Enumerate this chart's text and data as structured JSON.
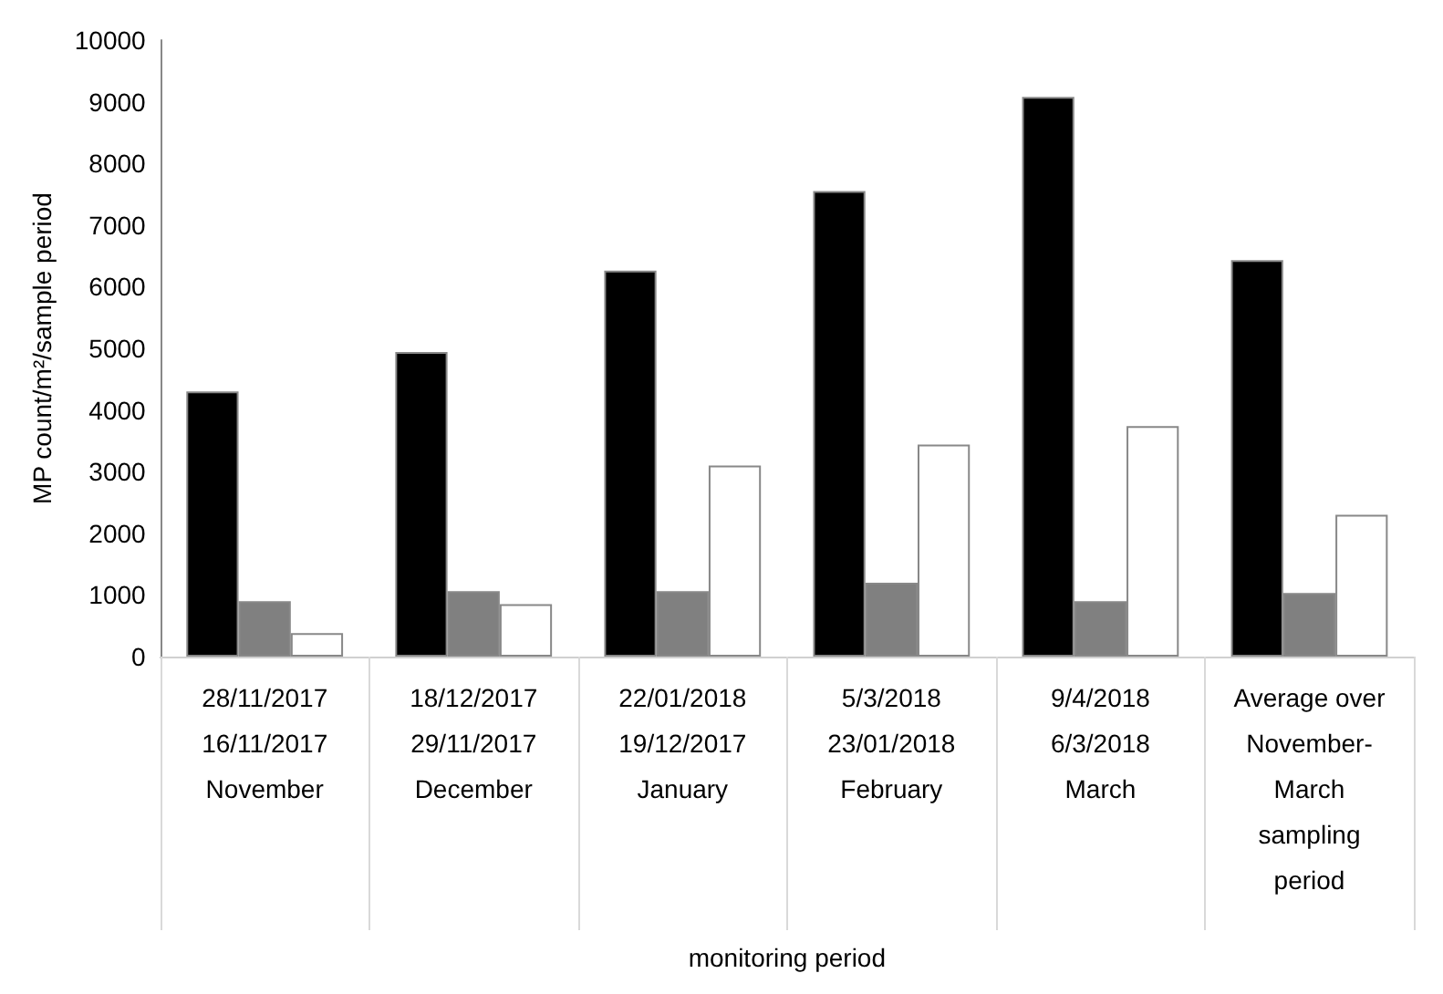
{
  "chart_data": {
    "type": "bar",
    "xlabel": "monitoring period",
    "ylabel": "MP count/m²/sample period",
    "categories": [
      "28/11/2017\n16/11/2017\nNovember",
      "18/12/2017\n29/11/2017\nDecember",
      "22/01/2018\n19/12/2017\nJanuary",
      "5/3/2018\n23/01/2018\nFebruary",
      "9/4/2018\n6/3/2018\nMarch",
      "Average over\nNovember-\nMarch\nsampling\nperiod"
    ],
    "series": [
      {
        "color": "#000000",
        "values": [
          4300,
          4940,
          6260,
          7550,
          9080,
          6430
        ]
      },
      {
        "color": "#808080",
        "values": [
          900,
          1060,
          1060,
          1200,
          900,
          1030
        ]
      },
      {
        "color": "#ffffff",
        "values": [
          380,
          850,
          3100,
          3440,
          3740,
          2300
        ]
      }
    ],
    "ylim": [
      0,
      10000
    ],
    "yticks": [
      0,
      1000,
      2000,
      3000,
      4000,
      5000,
      6000,
      7000,
      8000,
      9000,
      10000
    ],
    "grid": false
  }
}
